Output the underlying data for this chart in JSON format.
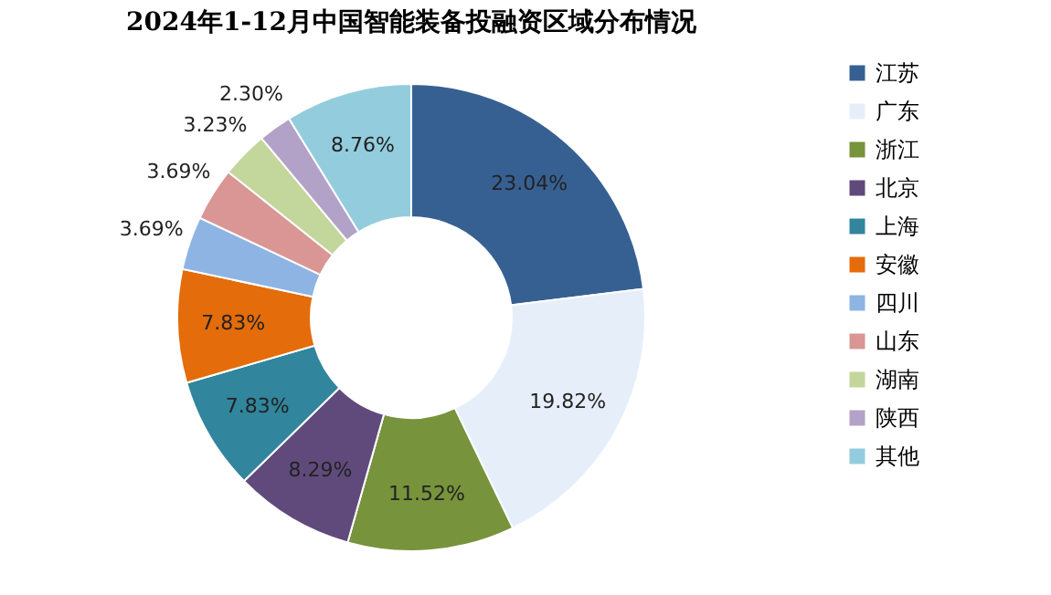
{
  "chart_data": {
    "type": "donut",
    "title": "2024年1-12月中国智能装备投融资区域分布情况",
    "categories": [
      "江苏",
      "广东",
      "浙江",
      "北京",
      "上海",
      "安徽",
      "四川",
      "山东",
      "湖南",
      "陕西",
      "其他"
    ],
    "values": [
      23.04,
      19.82,
      11.52,
      8.29,
      7.83,
      7.83,
      3.69,
      3.69,
      3.23,
      2.3,
      8.76
    ],
    "colors": [
      "#376092",
      "#e6eff9",
      "#77933c",
      "#604a7b",
      "#31859c",
      "#e46c0a",
      "#8eb4e3",
      "#d99694",
      "#c3d69b",
      "#b3a2c7",
      "#93cddd"
    ],
    "value_labels": [
      "23.04%",
      "19.82%",
      "11.52%",
      "8.29%",
      "7.83%",
      "7.83%",
      "3.69%",
      "3.69%",
      "3.23%",
      "2.30%",
      "8.76%"
    ],
    "legend": "right"
  }
}
